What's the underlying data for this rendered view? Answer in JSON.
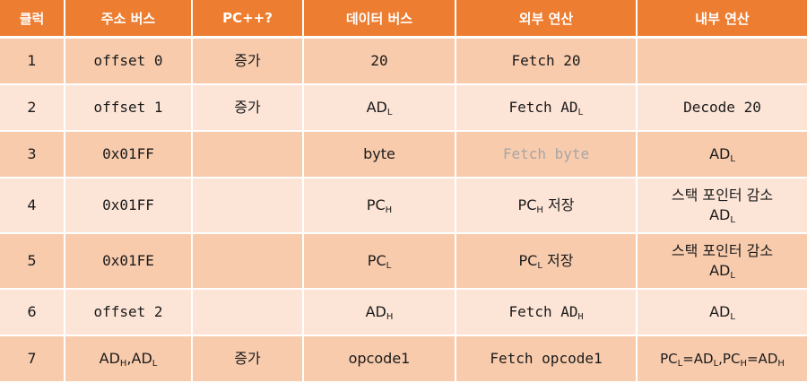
{
  "headers": [
    "클럭",
    "주소 버스",
    "PC++?",
    "데이터 버스",
    "외부 연산",
    "내부 연산"
  ],
  "rows": [
    {
      "clock": "1",
      "address": "offset 0",
      "pc": "증가",
      "data": "20",
      "ext": "Fetch 20",
      "int_line1": "",
      "int_line2": ""
    },
    {
      "clock": "2",
      "address": "offset 1",
      "pc": "증가",
      "data": "AD",
      "data_sub": "L",
      "ext": "Fetch AD",
      "ext_sub": "L",
      "int_line1": "Decode 20",
      "int_line2": ""
    },
    {
      "clock": "3",
      "address": "0x01FF",
      "pc": "",
      "data": "byte",
      "ext": "Fetch byte",
      "int_line1": "AD",
      "int_line1_sub": "L",
      "int_line2": ""
    },
    {
      "clock": "4",
      "address": "0x01FF",
      "pc": "",
      "data": "PC",
      "data_sub": "H",
      "ext": "PC",
      "ext_sub": "H",
      "ext_suffix": " 저장",
      "int_line1": "스택 포인터 감소",
      "int_line2": "AD",
      "int_line2_sub": "L"
    },
    {
      "clock": "5",
      "address": "0x01FE",
      "pc": "",
      "data": "PC",
      "data_sub": "L",
      "ext": "PC",
      "ext_sub": "L",
      "ext_suffix": " 저장",
      "int_line1": "스택 포인터 감소",
      "int_line2": "AD",
      "int_line2_sub": "L"
    },
    {
      "clock": "6",
      "address": "offset 2",
      "pc": "",
      "data": "AD",
      "data_sub": "H",
      "ext": "Fetch AD",
      "ext_sub": "H",
      "int_line1": "AD",
      "int_line1_sub": "L",
      "int_line2": ""
    },
    {
      "clock": "7",
      "address": "AD",
      "address_sub": "H",
      "address_2": ",AD",
      "address_2_sub": "L",
      "pc": "증가",
      "data": "opcode1",
      "ext": "Fetch opcode1",
      "int_parts": [
        "PC",
        "L",
        "=AD",
        "L",
        ",PC",
        "H",
        "=AD",
        "H"
      ]
    }
  ]
}
